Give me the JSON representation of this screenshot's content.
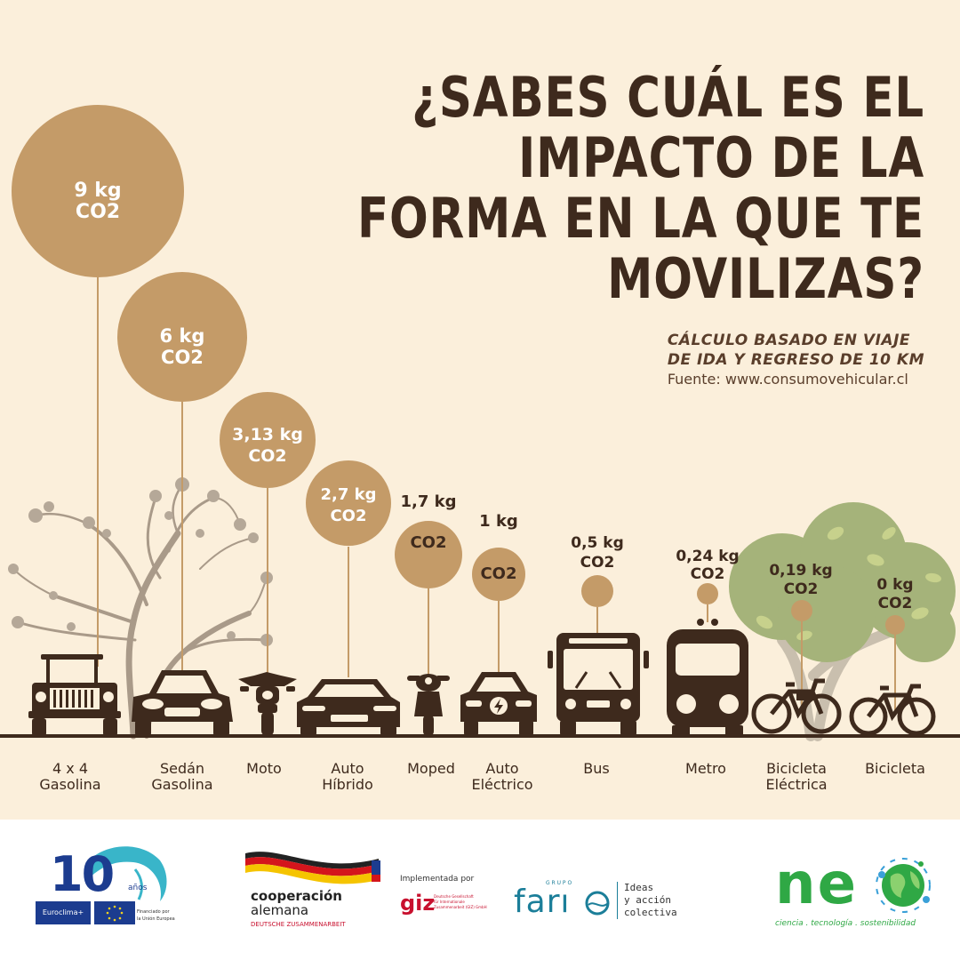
{
  "title": {
    "line1": "¿SABES CUÁL ES EL IMPACTO DE LA",
    "line2": "FORMA EN LA QUE TE MOVILIZAS?"
  },
  "note": {
    "line1": "CÁLCULO BASADO EN VIAJE",
    "line2": "DE IDA Y REGRESO DE 10 KM",
    "source": "Fuente: www.consumovehicular.cl"
  },
  "colors": {
    "background": "#fbefdb",
    "bubble": "#c49b68",
    "dark_brown": "#3e2a1d",
    "tree_green": "#a5b37a",
    "tree_trunk": "#c9bfae",
    "neo_green": "#2fa845",
    "euroclima_blue": "#1c3c8f",
    "faro_teal": "#1b7e99",
    "giz_red": "#c8102e"
  },
  "vehicles": [
    {
      "id": "4x4",
      "value_kg": 9,
      "label": [
        "4 x 4",
        "Gasolina"
      ],
      "emission": [
        "9 kg",
        "CO2"
      ],
      "icon": "jeep-icon"
    },
    {
      "id": "sedan",
      "value_kg": 6,
      "label": [
        "Sedán",
        "Gasolina"
      ],
      "emission": [
        "6 kg",
        "CO2"
      ],
      "icon": "sedan-car-icon"
    },
    {
      "id": "moto",
      "value_kg": 3.13,
      "label": [
        "Moto"
      ],
      "emission": [
        "3,13 kg",
        "CO2"
      ],
      "icon": "motorcycle-icon"
    },
    {
      "id": "hibrido",
      "value_kg": 2.7,
      "label": [
        "Auto",
        "Híbrido"
      ],
      "emission": [
        "2,7 kg",
        "CO2"
      ],
      "icon": "hybrid-car-icon"
    },
    {
      "id": "moped",
      "value_kg": 1.7,
      "label": [
        "Moped"
      ],
      "emission": [
        "1,7 kg",
        "CO2"
      ],
      "icon": "moped-icon"
    },
    {
      "id": "electrico",
      "value_kg": 1,
      "label": [
        "Auto",
        "Eléctrico"
      ],
      "emission": [
        "1 kg",
        "CO2"
      ],
      "icon": "electric-car-icon"
    },
    {
      "id": "bus",
      "value_kg": 0.5,
      "label": [
        "Bus"
      ],
      "emission": [
        "0,5 kg",
        "CO2"
      ],
      "icon": "bus-icon"
    },
    {
      "id": "metro",
      "value_kg": 0.24,
      "label": [
        "Metro"
      ],
      "emission": [
        "0,24 kg",
        "CO2"
      ],
      "icon": "metro-train-icon"
    },
    {
      "id": "ebike",
      "value_kg": 0.19,
      "label": [
        "Bicicleta",
        "Eléctrica"
      ],
      "emission": [
        "0,19 kg",
        "CO2"
      ],
      "icon": "electric-bicycle-icon"
    },
    {
      "id": "bici",
      "value_kg": 0,
      "label": [
        "Bicicleta"
      ],
      "emission": [
        "0 kg",
        "CO2"
      ],
      "icon": "bicycle-icon"
    }
  ],
  "footer": {
    "euroclima": {
      "number": "10",
      "anos": "años",
      "brand": "Euroclima+",
      "funded1": "Financiado por",
      "funded2": "la Unión Europea"
    },
    "cooperacion": {
      "line1": "cooperación",
      "line2": "alemana",
      "line3": "DEUTSCHE ZUSAMMENARBEIT"
    },
    "giz": {
      "implemented": "Implementada por",
      "brand": "giz",
      "desc1": "Deutsche Gesellschaft",
      "desc2": "für Internationale",
      "desc3": "Zusammenarbeit (GIZ) GmbH"
    },
    "faro": {
      "grupo": "G R U P O",
      "brand": "farו",
      "tag1": "Ideas",
      "tag2": "y acción",
      "tag3": "colectiva"
    },
    "neo": {
      "brand": "ne",
      "tagline": "ciencia . tecnología . sostenibilidad"
    }
  }
}
